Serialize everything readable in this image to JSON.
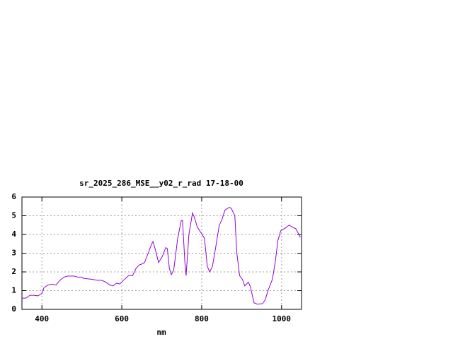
{
  "chart_data": {
    "type": "line",
    "title": "sr_2025_286_MSE__y02_r_rad 17-18-00",
    "x_label": "nm",
    "x": [
      350,
      360,
      370,
      380,
      390,
      400,
      405,
      415,
      425,
      435,
      445,
      455,
      465,
      480,
      490,
      500,
      505,
      520,
      540,
      550,
      560,
      570,
      578,
      587,
      595,
      604,
      618,
      627,
      636,
      644,
      648,
      657,
      666,
      675,
      678,
      684,
      692,
      701,
      710,
      714,
      719,
      724,
      730,
      740,
      749,
      752,
      758,
      761,
      768,
      777,
      782,
      789,
      798,
      807,
      814,
      820,
      827,
      835,
      844,
      851,
      858,
      869,
      874,
      883,
      888,
      895,
      902,
      908,
      917,
      922,
      931,
      939,
      952,
      959,
      966,
      977,
      984,
      991,
      998,
      1010,
      1019,
      1027,
      1036,
      1047
    ],
    "series": [
      {
        "name": "sr_2025_286_MSE__y02_r_rad",
        "color": "#9400d3",
        "values": [
          0.6,
          0.6,
          0.75,
          0.75,
          0.72,
          0.85,
          1.15,
          1.3,
          1.35,
          1.3,
          1.55,
          1.72,
          1.78,
          1.78,
          1.72,
          1.72,
          1.65,
          1.62,
          1.55,
          1.55,
          1.45,
          1.3,
          1.25,
          1.4,
          1.35,
          1.55,
          1.82,
          1.8,
          2.2,
          2.38,
          2.4,
          2.5,
          3.0,
          3.5,
          3.62,
          3.2,
          2.5,
          2.8,
          3.3,
          3.25,
          2.2,
          1.85,
          2.1,
          3.8,
          4.75,
          4.75,
          2.5,
          1.8,
          4.0,
          5.15,
          4.9,
          4.4,
          4.1,
          3.8,
          2.3,
          2.0,
          2.3,
          3.3,
          4.5,
          4.8,
          5.3,
          5.45,
          5.4,
          5.0,
          3.0,
          1.8,
          1.6,
          1.25,
          1.45,
          1.2,
          0.35,
          0.28,
          0.3,
          0.5,
          1.0,
          1.6,
          2.5,
          3.7,
          4.2,
          4.35,
          4.5,
          4.4,
          4.3,
          3.85
        ]
      }
    ],
    "xlim": [
      350,
      1050
    ],
    "ylim": [
      0,
      6
    ],
    "xticks": [
      400,
      600,
      800,
      1000
    ],
    "yticks": [
      0,
      1,
      2,
      3,
      4,
      5,
      6
    ],
    "grid": true
  }
}
